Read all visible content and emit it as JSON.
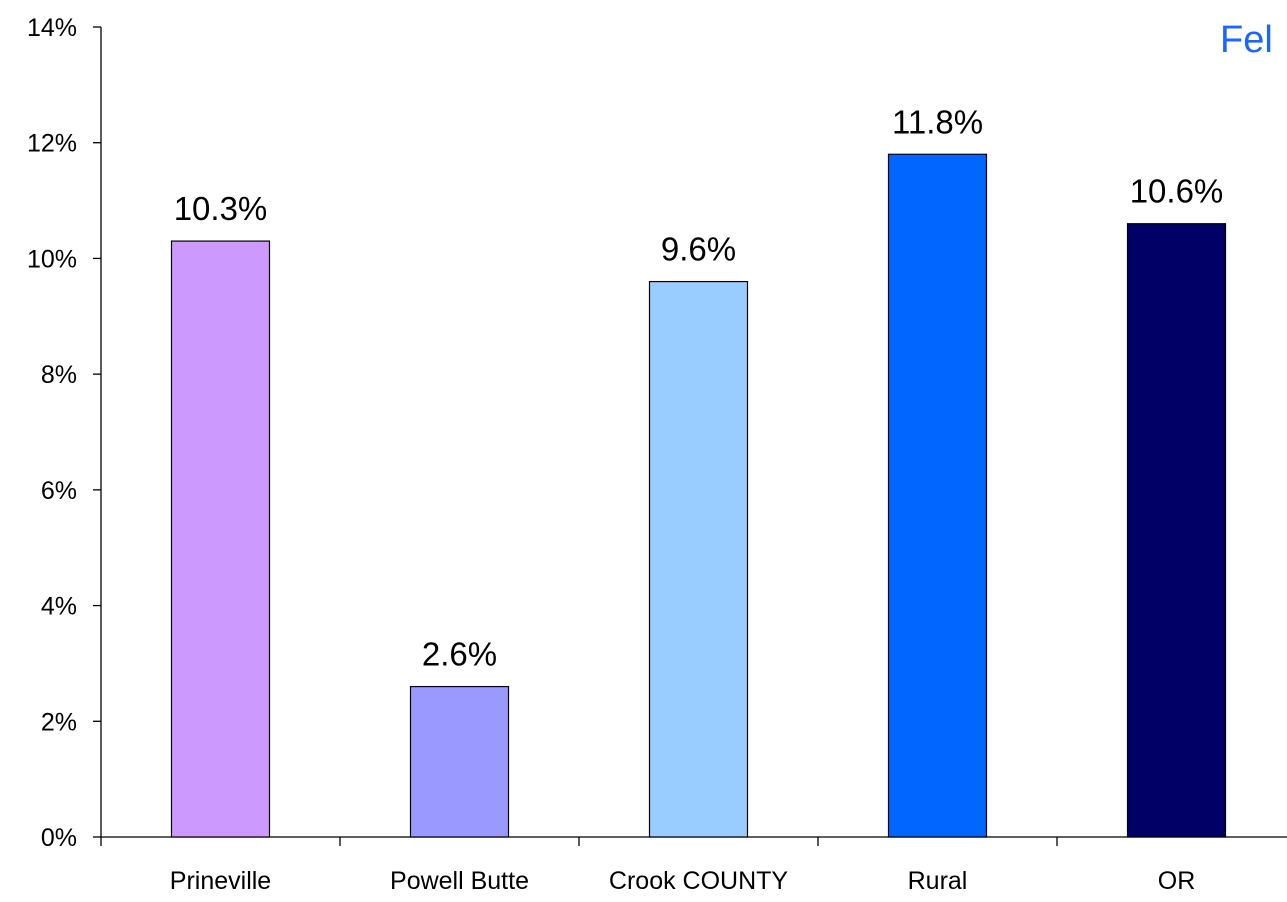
{
  "corner_text": "Fel",
  "chart_data": {
    "type": "bar",
    "categories": [
      "Prineville",
      "Powell Butte",
      "Crook COUNTY",
      "Rural",
      "OR"
    ],
    "values": [
      10.3,
      2.6,
      9.6,
      11.8,
      10.6
    ],
    "data_labels": [
      "10.3%",
      "2.6%",
      "9.6%",
      "11.8%",
      "10.6%"
    ],
    "bar_colors": [
      "#cc99ff",
      "#9999ff",
      "#99ccff",
      "#0066ff",
      "#000066"
    ],
    "ylim": [
      0,
      14
    ],
    "yticks": [
      0,
      2,
      4,
      6,
      8,
      10,
      12,
      14
    ],
    "ytick_labels": [
      "0%",
      "2%",
      "4%",
      "6%",
      "8%",
      "10%",
      "12%",
      "14%"
    ],
    "grid": false,
    "legend": "none"
  }
}
